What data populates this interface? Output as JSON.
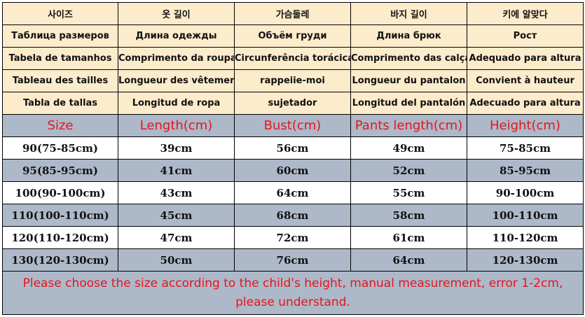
{
  "colors": {
    "header_bg": "#fdeccb",
    "band_bg": "#adb8c9",
    "accent_text": "#e8141b"
  },
  "header_rows": [
    [
      "사이즈",
      "옷 길이",
      "가슴둘레",
      "바지 길이",
      "키에 알맞다"
    ],
    [
      "Таблица размеров",
      "Длина одежды",
      "Объём груди",
      "Длина брюк",
      "Рост"
    ],
    [
      "Tabela de tamanhos",
      "Comprimento da roupa",
      "Circunferência torácica",
      "Comprimento das calças",
      "Adequado para altura"
    ],
    [
      "Tableau des tailles",
      "Longueur des vêtements",
      "rappeiie-moi",
      "Longueur du pantalon",
      "Convient à hauteur"
    ],
    [
      "Tabla de tallas",
      "Longitud de ropa",
      "sujetador",
      "Longitud del pantalón",
      "Adecuado para altura"
    ]
  ],
  "columns": [
    "Size",
    "Length(cm)",
    "Bust(cm)",
    "Pants length(cm)",
    "Height(cm)"
  ],
  "rows": [
    [
      "90(75-85cm)",
      "39cm",
      "56cm",
      "49cm",
      "75-85cm"
    ],
    [
      "95(85-95cm)",
      "41cm",
      "60cm",
      "52cm",
      "85-95cm"
    ],
    [
      "100(90-100cm)",
      "43cm",
      "64cm",
      "55cm",
      "90-100cm"
    ],
    [
      "110(100-110cm)",
      "45cm",
      "68cm",
      "58cm",
      "100-110cm"
    ],
    [
      "120(110-120cm)",
      "47cm",
      "72cm",
      "61cm",
      "110-120cm"
    ],
    [
      "130(120-130cm)",
      "50cm",
      "76cm",
      "64cm",
      "120-130cm"
    ]
  ],
  "note": "Please choose the size according to the child's height, manual measurement, error 1-2cm, please understand."
}
